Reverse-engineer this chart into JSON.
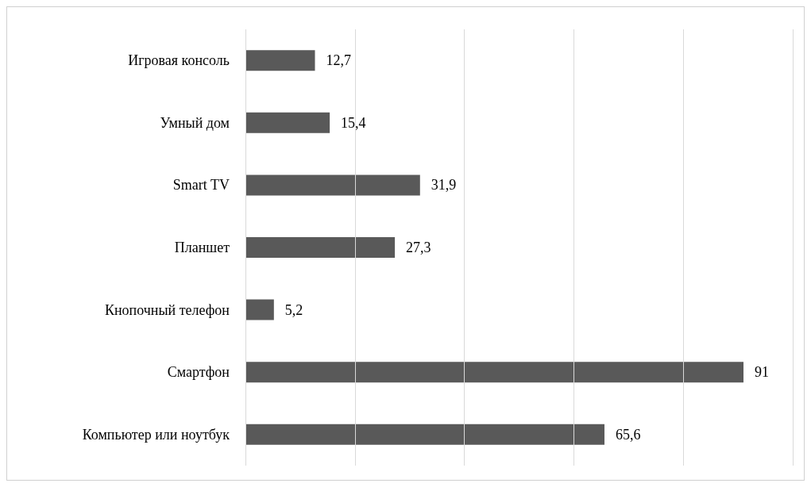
{
  "chart_data": {
    "type": "bar",
    "orientation": "horizontal",
    "categories": [
      "Игровая консоль",
      "Умный дом",
      "Smart TV",
      "Планшет",
      "Кнопочный телефон",
      "Смартфон",
      "Компьютер или ноутбук"
    ],
    "values": [
      12.7,
      15.4,
      31.9,
      27.3,
      5.2,
      91,
      65.6
    ],
    "value_labels": [
      "12,7",
      "15,4",
      "31,9",
      "27,3",
      "5,2",
      "91",
      "65,6"
    ],
    "color": "#595959",
    "xlim": [
      0,
      100
    ],
    "xticks": [
      {
        "value": 0,
        "label": null
      },
      {
        "value": 20,
        "label": null
      },
      {
        "value": 40,
        "label": null
      },
      {
        "value": 60,
        "label": null
      },
      {
        "value": 80,
        "label": null
      },
      {
        "value": 100,
        "label": null
      }
    ],
    "grid": "x",
    "tick_labels": "y"
  }
}
